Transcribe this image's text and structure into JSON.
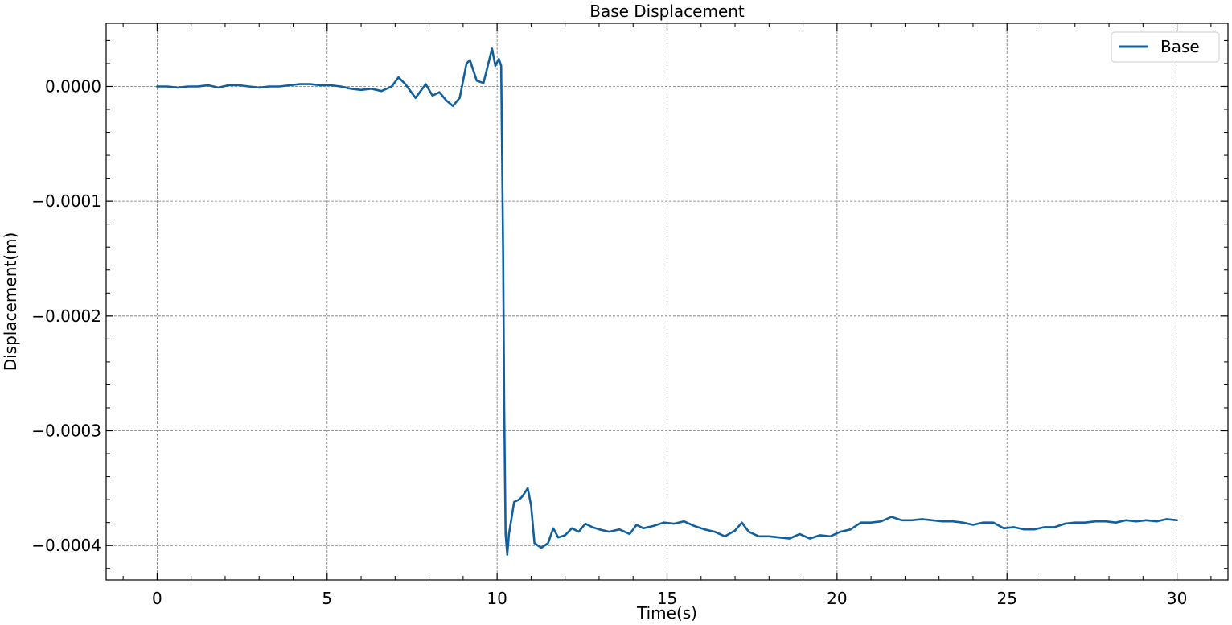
{
  "chart_data": {
    "type": "line",
    "title": "Base Displacement",
    "xlabel": "Time(s)",
    "ylabel": "Displacement(m)",
    "xlim": [
      -1.5,
      31.5
    ],
    "ylim": [
      -0.00043,
      5.5e-05
    ],
    "xticks": [
      0,
      5,
      10,
      15,
      20,
      25,
      30
    ],
    "xtick_labels": [
      "0",
      "5",
      "10",
      "15",
      "20",
      "25",
      "30"
    ],
    "yticks": [
      0.0,
      -0.0001,
      -0.0002,
      -0.0003,
      -0.0004
    ],
    "ytick_labels": [
      "0.0000",
      "−0.0001",
      "−0.0002",
      "−0.0003",
      "−0.0004"
    ],
    "grid": true,
    "legend_position": "top-right",
    "series": [
      {
        "name": "Base",
        "color": "#1060a0",
        "x": [
          0,
          0.3,
          0.6,
          0.9,
          1.2,
          1.5,
          1.8,
          2.1,
          2.4,
          2.7,
          3.0,
          3.3,
          3.6,
          3.9,
          4.2,
          4.5,
          4.8,
          5.1,
          5.4,
          5.7,
          6.0,
          6.3,
          6.6,
          6.9,
          7.1,
          7.3,
          7.6,
          7.9,
          8.1,
          8.3,
          8.5,
          8.7,
          8.9,
          9.1,
          9.2,
          9.4,
          9.6,
          9.7,
          9.85,
          9.95,
          10.05,
          10.12,
          10.18,
          10.21,
          10.25,
          10.3,
          10.35,
          10.5,
          10.65,
          10.75,
          10.9,
          11.0,
          11.1,
          11.3,
          11.5,
          11.65,
          11.8,
          12.0,
          12.2,
          12.4,
          12.6,
          12.8,
          13.0,
          13.3,
          13.6,
          13.9,
          14.1,
          14.3,
          14.6,
          14.9,
          15.2,
          15.5,
          15.8,
          16.1,
          16.4,
          16.7,
          17.0,
          17.2,
          17.4,
          17.7,
          18.0,
          18.3,
          18.6,
          18.9,
          19.2,
          19.5,
          19.8,
          20.1,
          20.4,
          20.7,
          21.0,
          21.3,
          21.6,
          21.9,
          22.2,
          22.5,
          22.8,
          23.1,
          23.4,
          23.7,
          24.0,
          24.3,
          24.6,
          24.9,
          25.2,
          25.5,
          25.8,
          26.1,
          26.4,
          26.7,
          27.0,
          27.3,
          27.6,
          27.9,
          28.2,
          28.5,
          28.8,
          29.1,
          29.4,
          29.7,
          30.0
        ],
        "y": [
          0.0,
          0.0,
          -1e-06,
          0.0,
          0.0,
          1e-06,
          -1e-06,
          1e-06,
          1e-06,
          0.0,
          -1e-06,
          0.0,
          0.0,
          1e-06,
          2e-06,
          2e-06,
          1e-06,
          1e-06,
          0.0,
          -2e-06,
          -3e-06,
          -2e-06,
          -4e-06,
          0.0,
          8e-06,
          2e-06,
          -1e-05,
          2e-06,
          -8e-06,
          -5e-06,
          -1.2e-05,
          -1.7e-05,
          -1e-05,
          2e-05,
          2.3e-05,
          5e-06,
          3e-06,
          1.5e-05,
          3.3e-05,
          1.8e-05,
          2.4e-05,
          1.8e-05,
          -0.00015,
          -0.00028,
          -0.00039,
          -0.000408,
          -0.00039,
          -0.000362,
          -0.00036,
          -0.000357,
          -0.00035,
          -0.000365,
          -0.000398,
          -0.000402,
          -0.000398,
          -0.000385,
          -0.000393,
          -0.000391,
          -0.000385,
          -0.000388,
          -0.000381,
          -0.000384,
          -0.000386,
          -0.000388,
          -0.000386,
          -0.00039,
          -0.000382,
          -0.000385,
          -0.000383,
          -0.00038,
          -0.000381,
          -0.000379,
          -0.000383,
          -0.000386,
          -0.000388,
          -0.000392,
          -0.000387,
          -0.00038,
          -0.000388,
          -0.000392,
          -0.000392,
          -0.000393,
          -0.000394,
          -0.00039,
          -0.000394,
          -0.000391,
          -0.000392,
          -0.000388,
          -0.000386,
          -0.00038,
          -0.00038,
          -0.000379,
          -0.000375,
          -0.000378,
          -0.000378,
          -0.000377,
          -0.000378,
          -0.000379,
          -0.000379,
          -0.00038,
          -0.000382,
          -0.00038,
          -0.00038,
          -0.000385,
          -0.000384,
          -0.000386,
          -0.000386,
          -0.000384,
          -0.000384,
          -0.000381,
          -0.00038,
          -0.00038,
          -0.000379,
          -0.000379,
          -0.00038,
          -0.000378,
          -0.000379,
          -0.000378,
          -0.000379,
          -0.000377,
          -0.000378
        ]
      }
    ]
  }
}
